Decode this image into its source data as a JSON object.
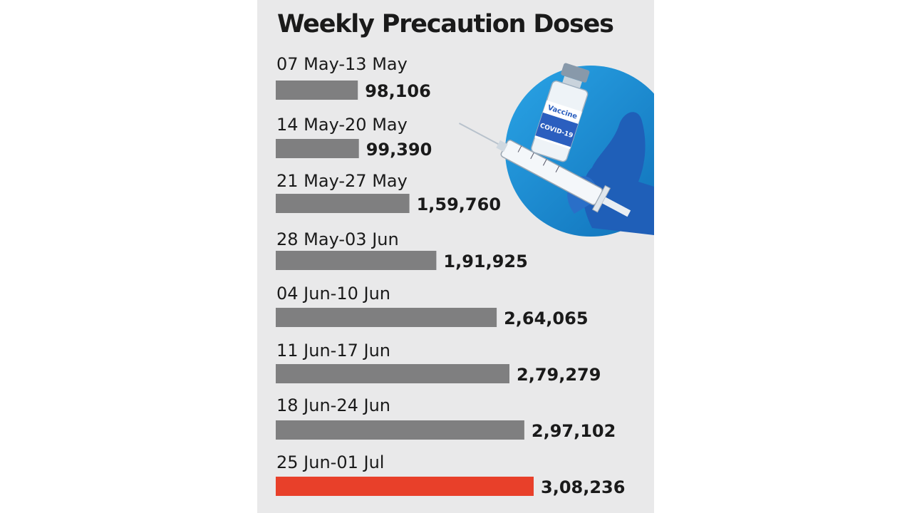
{
  "chart_data": {
    "type": "bar",
    "orientation": "horizontal",
    "title": "Weekly Precaution Doses",
    "categories": [
      "07 May-13 May",
      "14 May-20 May",
      "21 May-27 May",
      "28 May-03 Jun",
      "04 Jun-10 Jun",
      "11 Jun-17 Jun",
      "18 Jun-24 Jun",
      "25 Jun-01 Jul"
    ],
    "values": [
      98106,
      99390,
      159760,
      191925,
      264065,
      279279,
      297102,
      308236
    ],
    "value_labels": [
      "98,106",
      "99,390",
      "1,59,760",
      "1,91,925",
      "2,64,065",
      "2,79,279",
      "2,97,102",
      "3,08,236"
    ],
    "colors": {
      "default": "#7f7f80",
      "highlight": "#e8402a"
    },
    "highlight_index": 7,
    "legend": "none",
    "grid": false
  },
  "illustration": {
    "icon": "vaccine-syringe-icon",
    "vial_text": [
      "Vaccine",
      "COVID-19"
    ],
    "circle_color": "#1d8fd1",
    "glove_color": "#1f5fb8"
  }
}
